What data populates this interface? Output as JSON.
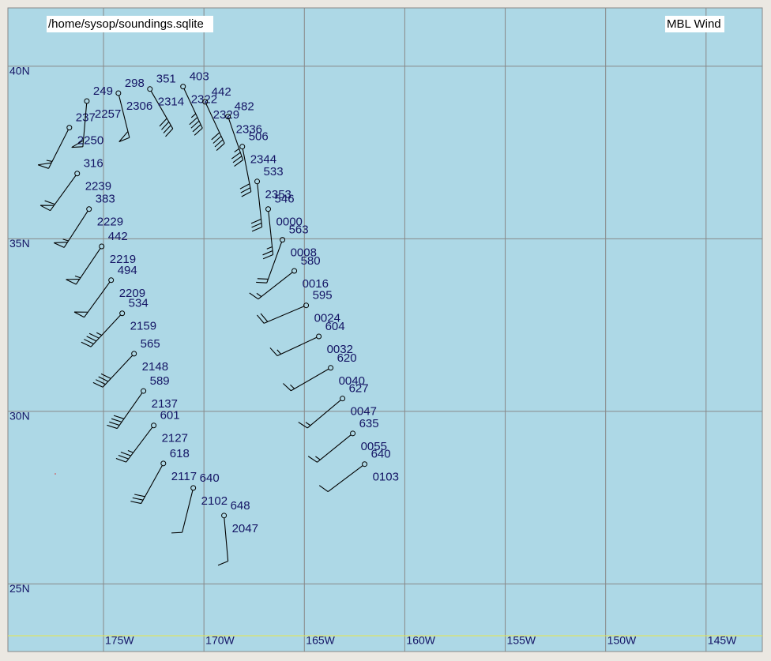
{
  "header": {
    "source": "/home/sysop/soundings.sqlite",
    "title": "MBL Wind"
  },
  "map": {
    "lonlim": [
      -179.76,
      -142.2
    ],
    "latlim": [
      23.04,
      41.69
    ],
    "lonticks": [
      {
        "value": -175,
        "label": "175W"
      },
      {
        "value": -170,
        "label": "170W"
      },
      {
        "value": -165,
        "label": "165W"
      },
      {
        "value": -160,
        "label": "160W"
      },
      {
        "value": -155,
        "label": "155W"
      },
      {
        "value": -150,
        "label": "150W"
      },
      {
        "value": -145,
        "label": "145W"
      }
    ],
    "latticks": [
      {
        "value": 25,
        "label": "25N"
      },
      {
        "value": 30,
        "label": "30N"
      },
      {
        "value": 35,
        "label": "35N"
      },
      {
        "value": 40,
        "label": "40N"
      }
    ]
  },
  "stations": [
    {
      "lon": -176.7,
      "lat": 38.22,
      "top": "237",
      "bottom": "2250",
      "dir": 207,
      "speed": 55
    },
    {
      "lon": -175.83,
      "lat": 38.99,
      "top": "249",
      "bottom": "2257",
      "dir": 185,
      "speed": 50
    },
    {
      "lon": -174.26,
      "lat": 39.22,
      "top": "298",
      "bottom": "2306",
      "dir": 166,
      "speed": 50
    },
    {
      "lon": -172.69,
      "lat": 39.34,
      "top": "351",
      "bottom": "2314",
      "dir": 150,
      "speed": 40
    },
    {
      "lon": -171.04,
      "lat": 39.41,
      "top": "403",
      "bottom": "2322",
      "dir": 155,
      "speed": 45
    },
    {
      "lon": -169.94,
      "lat": 38.97,
      "top": "442",
      "bottom": "2329",
      "dir": 155,
      "speed": 40
    },
    {
      "lon": -168.8,
      "lat": 38.54,
      "top": "482",
      "bottom": "2336",
      "dir": 161,
      "speed": 35
    },
    {
      "lon": -168.09,
      "lat": 37.67,
      "top": "506",
      "bottom": "2344",
      "dir": 169,
      "speed": 30
    },
    {
      "lon": -167.35,
      "lat": 36.66,
      "top": "533",
      "bottom": "2353",
      "dir": 174,
      "speed": 30
    },
    {
      "lon": -166.8,
      "lat": 35.86,
      "top": "546",
      "bottom": "0000",
      "dir": 174,
      "speed": 25
    },
    {
      "lon": -166.09,
      "lat": 34.97,
      "top": "563",
      "bottom": "0008",
      "dir": 200,
      "speed": 20
    },
    {
      "lon": -165.5,
      "lat": 34.07,
      "top": "580",
      "bottom": "0016",
      "dir": 232,
      "speed": 15
    },
    {
      "lon": -164.91,
      "lat": 33.07,
      "top": "595",
      "bottom": "0024",
      "dir": 247,
      "speed": 20
    },
    {
      "lon": -164.28,
      "lat": 32.17,
      "top": "604",
      "bottom": "0032",
      "dir": 245,
      "speed": 15
    },
    {
      "lon": -163.69,
      "lat": 31.26,
      "top": "620",
      "bottom": "0040",
      "dir": 240,
      "speed": 15
    },
    {
      "lon": -163.1,
      "lat": 30.37,
      "top": "627",
      "bottom": "0047",
      "dir": 230,
      "speed": 15
    },
    {
      "lon": -162.59,
      "lat": 29.36,
      "top": "635",
      "bottom": "0055",
      "dir": 231,
      "speed": 15
    },
    {
      "lon": -162.0,
      "lat": 28.47,
      "top": "640",
      "bottom": "0103",
      "dir": 233,
      "speed": 10
    },
    {
      "lon": -176.31,
      "lat": 36.89,
      "top": "316",
      "bottom": "2239",
      "dir": 216,
      "speed": 60
    },
    {
      "lon": -175.72,
      "lat": 35.86,
      "top": "383",
      "bottom": "2229",
      "dir": 213,
      "speed": 55
    },
    {
      "lon": -175.09,
      "lat": 34.78,
      "top": "442",
      "bottom": "2219",
      "dir": 214,
      "speed": 55
    },
    {
      "lon": -174.62,
      "lat": 33.8,
      "top": "494",
      "bottom": "2209",
      "dir": 216,
      "speed": 50
    },
    {
      "lon": -174.07,
      "lat": 32.84,
      "top": "534",
      "bottom": "2159",
      "dir": 223,
      "speed": 45
    },
    {
      "lon": -173.48,
      "lat": 31.67,
      "top": "565",
      "bottom": "2148",
      "dir": 223,
      "speed": 40
    },
    {
      "lon": -173.01,
      "lat": 30.59,
      "top": "589",
      "bottom": "2137",
      "dir": 215,
      "speed": 40
    },
    {
      "lon": -172.5,
      "lat": 29.59,
      "top": "601",
      "bottom": "2127",
      "dir": 217,
      "speed": 35
    },
    {
      "lon": -172.02,
      "lat": 28.49,
      "top": "618",
      "bottom": "2117",
      "dir": 209,
      "speed": 30
    },
    {
      "lon": -170.53,
      "lat": 27.78,
      "top": "640",
      "bottom": "2102",
      "dir": 194,
      "speed": 10
    },
    {
      "lon": -169.0,
      "lat": 26.98,
      "top": "648",
      "bottom": "2047",
      "dir": 175,
      "speed": 10
    }
  ]
}
